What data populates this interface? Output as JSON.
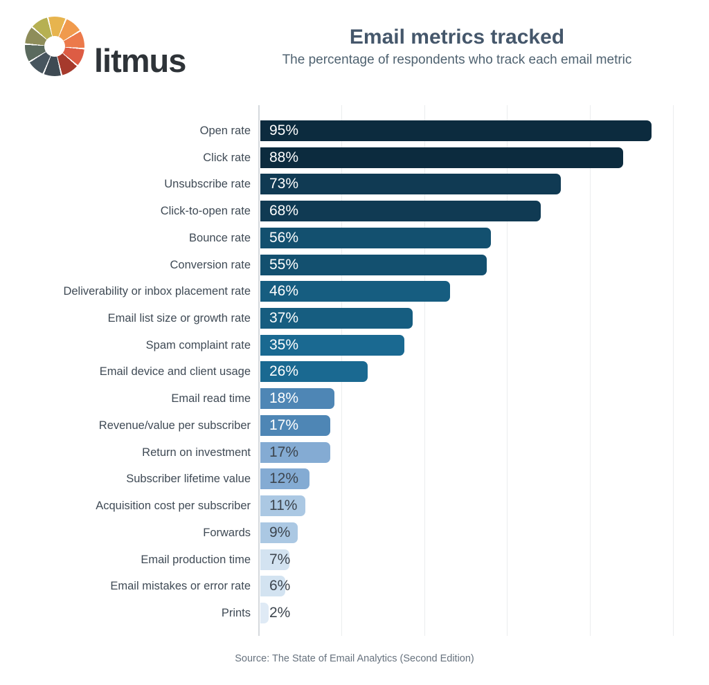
{
  "logo": {
    "brand": "litmus",
    "wheel_colors": [
      "#e7b44e",
      "#f09a4d",
      "#ec7a4b",
      "#dd5c44",
      "#a63a2c",
      "#3e4a53",
      "#47555e",
      "#5a6a5e",
      "#8e8d5a",
      "#b6b052"
    ]
  },
  "header": {
    "title": "Email metrics tracked",
    "subtitle": "The percentage of respondents who track each email metric"
  },
  "chart_data": {
    "type": "bar",
    "orientation": "horizontal",
    "title": "Email metrics tracked",
    "subtitle": "The percentage of respondents who track each email metric",
    "xlabel": "",
    "ylabel": "",
    "xlim": [
      0,
      100
    ],
    "gridline_step_pct": 20,
    "grid": true,
    "legend": false,
    "categories": [
      "Open rate",
      "Click rate",
      "Unsubscribe rate",
      "Click-to-open rate",
      "Bounce rate",
      "Conversion rate",
      "Deliverability or inbox placement rate",
      "Email list size or growth rate",
      "Spam complaint rate",
      "Email device and client usage",
      "Email read time",
      "Revenue/value per subscriber",
      "Return on investment",
      "Subscriber lifetime value",
      "Acquisition cost per subscriber",
      "Forwards",
      "Email production time",
      "Email mistakes or error rate",
      "Prints"
    ],
    "values": [
      95,
      88,
      73,
      68,
      56,
      55,
      46,
      37,
      35,
      26,
      18,
      17,
      17,
      12,
      11,
      9,
      7,
      6,
      2
    ],
    "value_labels": [
      "95%",
      "88%",
      "73%",
      "68%",
      "56%",
      "55%",
      "46%",
      "37%",
      "35%",
      "26%",
      "18%",
      "17%",
      "17%",
      "12%",
      "11%",
      "9%",
      "7%",
      "6%",
      "2%"
    ],
    "bar_colors": [
      "#0c2b3e",
      "#0c2b3e",
      "#103a53",
      "#103a53",
      "#13506f",
      "#13506f",
      "#165d80",
      "#165d80",
      "#1a6991",
      "#1a6991",
      "#4e86b5",
      "#4e86b5",
      "#84abd3",
      "#84abd3",
      "#abc8e3",
      "#abc8e3",
      "#d3e3f1",
      "#d3e3f1",
      "#dfeaf5"
    ],
    "value_text_colors": [
      "#ffffff",
      "#ffffff",
      "#ffffff",
      "#ffffff",
      "#ffffff",
      "#ffffff",
      "#ffffff",
      "#ffffff",
      "#ffffff",
      "#ffffff",
      "#ffffff",
      "#ffffff",
      "#3d454e",
      "#3d454e",
      "#3d454e",
      "#3d454e",
      "#3d454e",
      "#3d454e",
      "#3d454e"
    ]
  },
  "footer": {
    "source": "Source: The State of Email Analytics (Second Edition)"
  }
}
